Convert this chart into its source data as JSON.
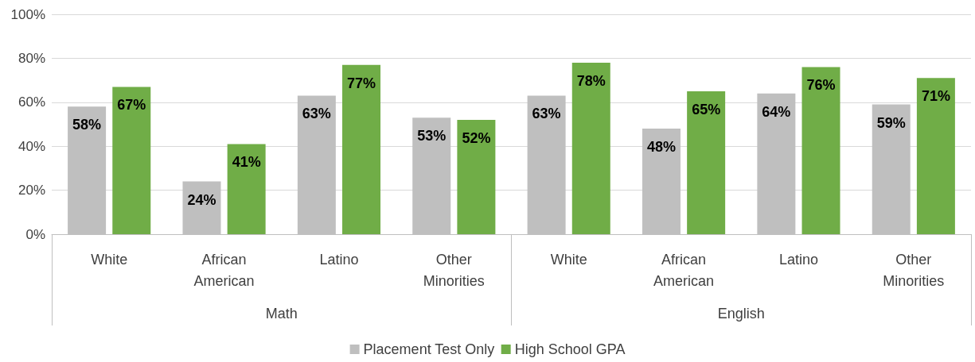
{
  "chart_data": {
    "type": "bar",
    "categories": [
      "White",
      "African\nAmerican",
      "Latino",
      "Other\nMinorities",
      "White",
      "African\nAmerican",
      "Latino",
      "Other\nMinorities"
    ],
    "annotations": [
      "Math",
      "English"
    ],
    "series": [
      {
        "name": "Placement Test Only",
        "color": "#bfbfbf",
        "values": [
          58,
          24,
          63,
          53,
          63,
          48,
          64,
          59
        ],
        "value_labels": [
          "58%",
          "24%",
          "63%",
          "53%",
          "63%",
          "48%",
          "64%",
          "59%"
        ]
      },
      {
        "name": "High School GPA",
        "color": "#70ad47",
        "values": [
          67,
          41,
          77,
          52,
          78,
          65,
          76,
          71
        ],
        "value_labels": [
          "67%",
          "41%",
          "77%",
          "52%",
          "78%",
          "65%",
          "76%",
          "71%"
        ]
      }
    ],
    "ylim": [
      0,
      100
    ],
    "yticks": [
      {
        "value": 0,
        "label": "0%"
      },
      {
        "value": 20,
        "label": "20%"
      },
      {
        "value": 40,
        "label": "40%"
      },
      {
        "value": 60,
        "label": "60%"
      },
      {
        "value": 80,
        "label": "80%"
      },
      {
        "value": 100,
        "label": "100%"
      }
    ],
    "grid": "y",
    "legend": "bottom"
  }
}
